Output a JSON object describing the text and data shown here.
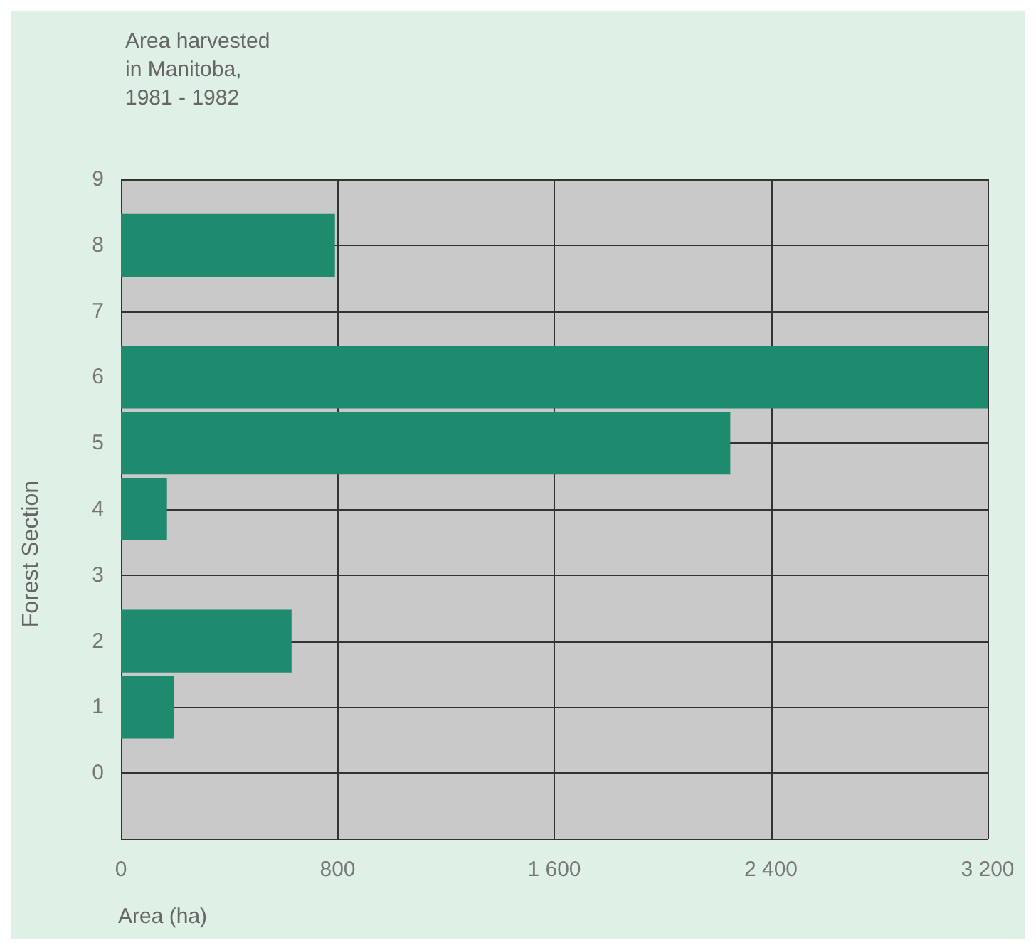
{
  "chart_data": {
    "type": "bar",
    "orientation": "horizontal",
    "title": "Area harvested\nin Manitoba,\n1981 - 1982",
    "xlabel": "Area (ha)",
    "ylabel": "Forest Section",
    "categories": [
      "9",
      "8",
      "7",
      "6",
      "5",
      "4",
      "3",
      "2",
      "1",
      "0",
      null
    ],
    "values": [
      null,
      790,
      null,
      3200,
      2250,
      170,
      null,
      630,
      195,
      null,
      null
    ],
    "color": "#1e8a6e",
    "xlim": [
      0,
      3200
    ],
    "xticks": [
      0,
      {
        "value": 800,
        "label": "800"
      },
      {
        "value": 1600,
        "label": "1 600"
      },
      {
        "value": 2400,
        "label": "2 400"
      },
      {
        "value": 3200,
        "label": "3 200"
      }
    ],
    "grid": true
  }
}
